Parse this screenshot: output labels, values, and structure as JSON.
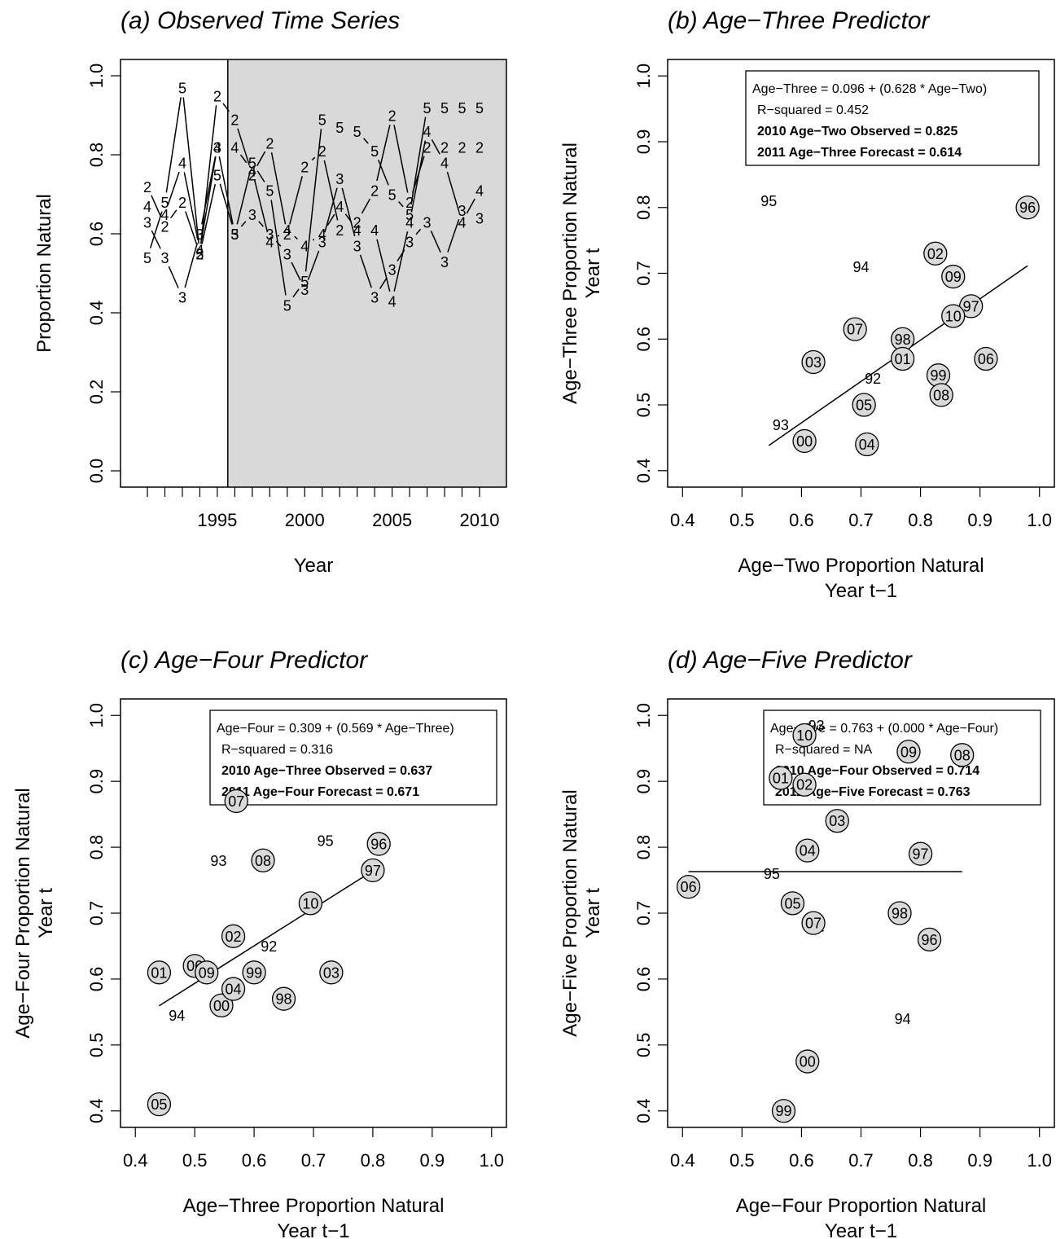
{
  "chart_data": [
    {
      "type": "line",
      "title": "(a) Observed Time Series",
      "xlabel": "Year",
      "ylabel": "Proportion Natural",
      "xlim": [
        1990.3,
        2010.7
      ],
      "ylim": [
        0,
        1
      ],
      "xticks": [
        1991,
        1992,
        1993,
        1994,
        1995,
        1996,
        1997,
        1998,
        1999,
        2000,
        2001,
        2002,
        2003,
        2004,
        2005,
        2006,
        2007,
        2008,
        2009,
        2010
      ],
      "xtick_labels": {
        "1995": "1995",
        "2000": "2000",
        "2005": "2005",
        "2010": "2010"
      },
      "yticks": [
        "0.0",
        "0.2",
        "0.4",
        "0.6",
        "0.8",
        "1.0"
      ],
      "shaded_from": 1995.6,
      "x": [
        1991,
        1992,
        1993,
        1994,
        1995,
        1996,
        1997,
        1998,
        1999,
        2000,
        2001,
        2002,
        2003,
        2004,
        2005,
        2006,
        2007,
        2008,
        2009,
        2010
      ],
      "series": [
        {
          "name": "2",
          "values": [
            0.72,
            0.62,
            0.68,
            0.55,
            0.95,
            0.89,
            0.75,
            0.83,
            0.6,
            0.77,
            0.81,
            0.61,
            0.63,
            0.71,
            0.9,
            0.68,
            0.82,
            0.82,
            0.82,
            0.82
          ]
        },
        {
          "name": "3",
          "values": [
            0.63,
            0.54,
            0.44,
            0.6,
            0.82,
            0.6,
            0.65,
            0.6,
            0.55,
            0.46,
            0.58,
            0.74,
            0.57,
            0.44,
            0.51,
            0.58,
            0.63,
            0.53,
            0.66,
            0.64
          ]
        },
        {
          "name": "4",
          "values": [
            0.67,
            0.65,
            0.78,
            0.56,
            0.82,
            0.82,
            0.76,
            0.58,
            0.61,
            0.57,
            0.6,
            0.67,
            0.61,
            0.61,
            0.43,
            0.63,
            0.86,
            0.78,
            0.63,
            0.71
          ]
        },
        {
          "name": "5",
          "values": [
            0.54,
            0.68,
            0.97,
            0.55,
            0.75,
            0.6,
            0.78,
            0.71,
            0.42,
            0.48,
            0.89,
            0.87,
            0.86,
            0.81,
            0.7,
            0.65,
            0.92,
            0.92,
            0.92,
            0.92
          ]
        }
      ]
    },
    {
      "type": "scatter",
      "title": "(b) Age−Three Predictor",
      "xlabel": "Age−Two Proportion Natural",
      "xlabel2": "Year t−1",
      "ylabel": "Age−Three Proportion Natural",
      "ylabel2": "Year t",
      "xlim": [
        0.4,
        1.0
      ],
      "ylim": [
        0.4,
        1.0
      ],
      "xticks": [
        "0.4",
        "0.5",
        "0.6",
        "0.7",
        "0.8",
        "0.9",
        "1.0"
      ],
      "yticks": [
        "0.4",
        "0.5",
        "0.6",
        "0.7",
        "0.8",
        "0.9",
        "1.0"
      ],
      "fit": {
        "intercept": 0.096,
        "slope": 0.628,
        "x_range": [
          0.545,
          0.98
        ]
      },
      "annotation": [
        {
          "text": "Age−Three = 0.096 + (0.628 * Age−Two)",
          "bold": false
        },
        {
          "text": "R−squared = 0.452",
          "bold": false
        },
        {
          "text": "2010 Age−Two Observed = 0.825",
          "bold": true
        },
        {
          "text": "2011 Age−Three Forecast = 0.614",
          "bold": true
        }
      ],
      "points": [
        {
          "label": "92",
          "x": 0.72,
          "y": 0.54,
          "circled": false
        },
        {
          "label": "93",
          "x": 0.565,
          "y": 0.47,
          "circled": false
        },
        {
          "label": "94",
          "x": 0.7,
          "y": 0.71,
          "circled": false
        },
        {
          "label": "95",
          "x": 0.545,
          "y": 0.81,
          "circled": false
        },
        {
          "label": "96",
          "x": 0.98,
          "y": 0.8,
          "circled": true
        },
        {
          "label": "97",
          "x": 0.885,
          "y": 0.65,
          "circled": true
        },
        {
          "label": "98",
          "x": 0.77,
          "y": 0.6,
          "circled": true
        },
        {
          "label": "99",
          "x": 0.83,
          "y": 0.545,
          "circled": true
        },
        {
          "label": "00",
          "x": 0.605,
          "y": 0.445,
          "circled": true
        },
        {
          "label": "01",
          "x": 0.77,
          "y": 0.57,
          "circled": true
        },
        {
          "label": "02",
          "x": 0.825,
          "y": 0.73,
          "circled": true
        },
        {
          "label": "03",
          "x": 0.62,
          "y": 0.565,
          "circled": true
        },
        {
          "label": "04",
          "x": 0.71,
          "y": 0.44,
          "circled": true
        },
        {
          "label": "05",
          "x": 0.705,
          "y": 0.5,
          "circled": true
        },
        {
          "label": "06",
          "x": 0.91,
          "y": 0.57,
          "circled": true
        },
        {
          "label": "07",
          "x": 0.69,
          "y": 0.615,
          "circled": true
        },
        {
          "label": "08",
          "x": 0.835,
          "y": 0.515,
          "circled": true
        },
        {
          "label": "09",
          "x": 0.855,
          "y": 0.695,
          "circled": true
        },
        {
          "label": "10",
          "x": 0.855,
          "y": 0.635,
          "circled": true
        }
      ]
    },
    {
      "type": "scatter",
      "title": "(c) Age−Four Predictor",
      "xlabel": "Age−Three Proportion Natural",
      "xlabel2": "Year t−1",
      "ylabel": "Age−Four Proportion Natural",
      "ylabel2": "Year t",
      "xlim": [
        0.4,
        1.0
      ],
      "ylim": [
        0.4,
        1.0
      ],
      "xticks": [
        "0.4",
        "0.5",
        "0.6",
        "0.7",
        "0.8",
        "0.9",
        "1.0"
      ],
      "yticks": [
        "0.4",
        "0.5",
        "0.6",
        "0.7",
        "0.8",
        "0.9",
        "1.0"
      ],
      "fit": {
        "intercept": 0.309,
        "slope": 0.569,
        "x_range": [
          0.44,
          0.81
        ]
      },
      "annotation": [
        {
          "text": "Age−Four = 0.309 + (0.569 * Age−Three)",
          "bold": false
        },
        {
          "text": "R−squared = 0.316",
          "bold": false
        },
        {
          "text": "2010 Age−Three Observed = 0.637",
          "bold": true
        },
        {
          "text": "2011 Age−Four Forecast = 0.671",
          "bold": true
        }
      ],
      "points": [
        {
          "label": "92",
          "x": 0.625,
          "y": 0.65,
          "circled": false
        },
        {
          "label": "93",
          "x": 0.54,
          "y": 0.78,
          "circled": false
        },
        {
          "label": "94",
          "x": 0.47,
          "y": 0.545,
          "circled": false
        },
        {
          "label": "95",
          "x": 0.72,
          "y": 0.81,
          "circled": false
        },
        {
          "label": "96",
          "x": 0.81,
          "y": 0.805,
          "circled": true
        },
        {
          "label": "97",
          "x": 0.8,
          "y": 0.765,
          "circled": true
        },
        {
          "label": "98",
          "x": 0.65,
          "y": 0.57,
          "circled": true
        },
        {
          "label": "99",
          "x": 0.6,
          "y": 0.61,
          "circled": true
        },
        {
          "label": "00",
          "x": 0.545,
          "y": 0.56,
          "circled": true
        },
        {
          "label": "01",
          "x": 0.44,
          "y": 0.61,
          "circled": true
        },
        {
          "label": "02",
          "x": 0.565,
          "y": 0.665,
          "circled": true
        },
        {
          "label": "03",
          "x": 0.73,
          "y": 0.61,
          "circled": true
        },
        {
          "label": "04",
          "x": 0.565,
          "y": 0.585,
          "circled": true
        },
        {
          "label": "05",
          "x": 0.44,
          "y": 0.41,
          "circled": true
        },
        {
          "label": "06",
          "x": 0.5,
          "y": 0.62,
          "circled": true
        },
        {
          "label": "07",
          "x": 0.57,
          "y": 0.87,
          "circled": true
        },
        {
          "label": "08",
          "x": 0.615,
          "y": 0.78,
          "circled": true
        },
        {
          "label": "09",
          "x": 0.52,
          "y": 0.61,
          "circled": true
        },
        {
          "label": "10",
          "x": 0.695,
          "y": 0.715,
          "circled": true
        }
      ]
    },
    {
      "type": "scatter",
      "title": "(d) Age−Five Predictor",
      "xlabel": "Age−Four Proportion Natural",
      "xlabel2": "Year t−1",
      "ylabel": "Age−Five Proportion Natural",
      "ylabel2": "Year t",
      "xlim": [
        0.4,
        1.0
      ],
      "ylim": [
        0.4,
        1.0
      ],
      "xticks": [
        "0.4",
        "0.5",
        "0.6",
        "0.7",
        "0.8",
        "0.9",
        "1.0"
      ],
      "yticks": [
        "0.4",
        "0.5",
        "0.6",
        "0.7",
        "0.8",
        "0.9",
        "1.0"
      ],
      "fit": {
        "intercept": 0.763,
        "slope": 0.0,
        "x_range": [
          0.41,
          0.87
        ]
      },
      "annotation": [
        {
          "text": "Age−Five = 0.763 + (0.000 * Age−Four)",
          "bold": false
        },
        {
          "text": "R−squared = NA",
          "bold": false
        },
        {
          "text": "2010 Age−Four Observed = 0.714",
          "bold": true
        },
        {
          "text": "2011 Age−Five Forecast = 0.763",
          "bold": true
        }
      ],
      "points": [
        {
          "label": "92",
          "x": 0.625,
          "y": 0.68,
          "circled": false
        },
        {
          "label": "93",
          "x": 0.625,
          "y": 0.985,
          "circled": false
        },
        {
          "label": "94",
          "x": 0.77,
          "y": 0.54,
          "circled": false
        },
        {
          "label": "95",
          "x": 0.55,
          "y": 0.76,
          "circled": false
        },
        {
          "label": "96",
          "x": 0.815,
          "y": 0.66,
          "circled": true
        },
        {
          "label": "97",
          "x": 0.8,
          "y": 0.79,
          "circled": true
        },
        {
          "label": "98",
          "x": 0.765,
          "y": 0.7,
          "circled": true
        },
        {
          "label": "99",
          "x": 0.57,
          "y": 0.4,
          "circled": true
        },
        {
          "label": "00",
          "x": 0.61,
          "y": 0.475,
          "circled": true
        },
        {
          "label": "01",
          "x": 0.565,
          "y": 0.905,
          "circled": true
        },
        {
          "label": "02",
          "x": 0.605,
          "y": 0.895,
          "circled": true
        },
        {
          "label": "03",
          "x": 0.66,
          "y": 0.84,
          "circled": true
        },
        {
          "label": "04",
          "x": 0.61,
          "y": 0.795,
          "circled": true
        },
        {
          "label": "05",
          "x": 0.585,
          "y": 0.715,
          "circled": true
        },
        {
          "label": "06",
          "x": 0.41,
          "y": 0.74,
          "circled": true
        },
        {
          "label": "07",
          "x": 0.62,
          "y": 0.685,
          "circled": true
        },
        {
          "label": "08",
          "x": 0.87,
          "y": 0.94,
          "circled": true
        },
        {
          "label": "09",
          "x": 0.78,
          "y": 0.945,
          "circled": true
        },
        {
          "label": "10",
          "x": 0.605,
          "y": 0.97,
          "circled": true
        }
      ]
    }
  ]
}
